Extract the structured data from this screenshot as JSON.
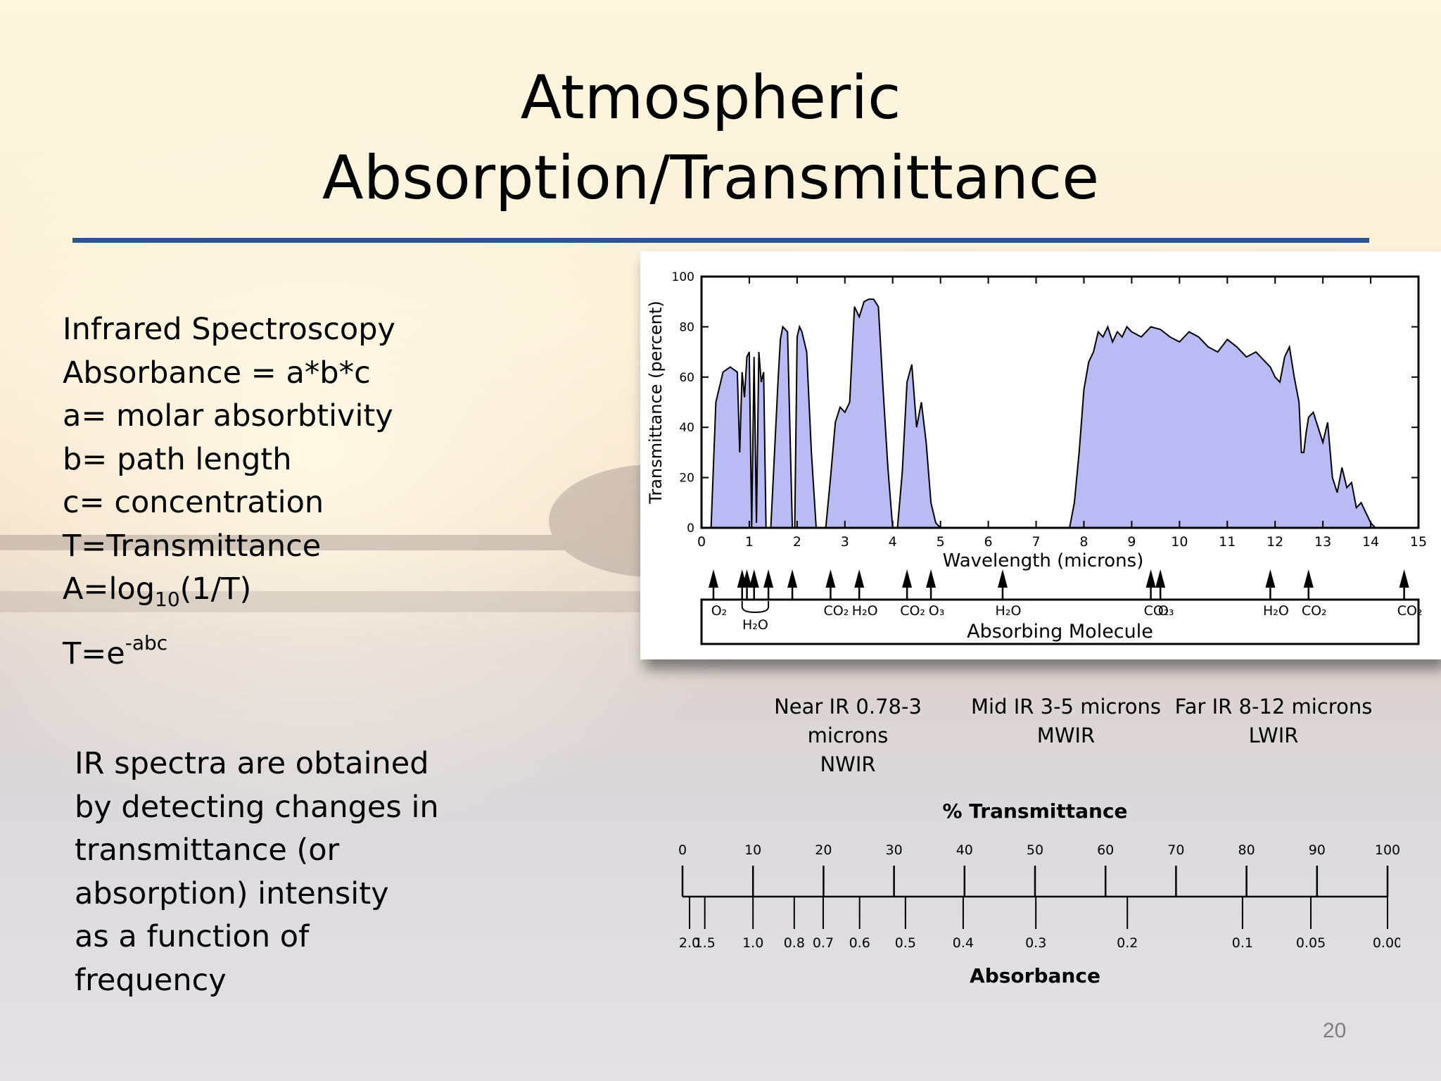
{
  "slide": {
    "title_line1": "Atmospheric",
    "title_line2": "Absorption/Transmittance",
    "page_number": "20",
    "accent_rule_color": "#2a5592"
  },
  "formulas": {
    "line1": "Infrared Spectroscopy",
    "line2": "Absorbance = a*b*c",
    "line3": "a= molar absorbtivity",
    "line4": "b= path length",
    "line5": "c= concentration",
    "line6": "T=Transmittance",
    "a_eq_prefix": "A=log",
    "a_eq_sub": "10",
    "a_eq_suffix": "(1/T)",
    "t_eq_prefix": "T=e",
    "t_eq_sup": "-abc"
  },
  "paragraph": {
    "lines": [
      "IR spectra are obtained",
      "by detecting changes in",
      "transmittance (or",
      "absorption) intensity",
      "as a function of",
      "frequency"
    ]
  },
  "ir_bands": [
    {
      "name": "Near IR 0.78-3 microns",
      "abbr": "NWIR"
    },
    {
      "name": "Mid IR 3-5 microns",
      "abbr": "MWIR"
    },
    {
      "name": "Far IR 8-12 microns",
      "abbr": "LWIR"
    }
  ],
  "chart_data": [
    {
      "type": "area",
      "title": "",
      "xlabel": "Wavelength (microns)",
      "ylabel": "Transmittance (percent)",
      "xlim": [
        0,
        15
      ],
      "ylim": [
        0,
        100
      ],
      "x_ticks": [
        "0",
        "1",
        "2",
        "3",
        "4",
        "5",
        "6",
        "7",
        "8",
        "9",
        "10",
        "11",
        "12",
        "13",
        "14",
        "15"
      ],
      "y_ticks": [
        "0",
        "20",
        "40",
        "60",
        "80",
        "100"
      ],
      "fill_color": "#b9bcf4",
      "series": [
        {
          "name": "Transmittance",
          "x": [
            0.2,
            0.3,
            0.45,
            0.6,
            0.75,
            0.8,
            0.85,
            0.9,
            0.95,
            1.0,
            1.05,
            1.1,
            1.15,
            1.2,
            1.25,
            1.3,
            1.35,
            1.4,
            1.45,
            1.6,
            1.65,
            1.7,
            1.8,
            1.9,
            1.95,
            2.0,
            2.05,
            2.1,
            2.2,
            2.3,
            2.4,
            2.5,
            2.6,
            2.7,
            2.8,
            2.9,
            3.0,
            3.1,
            3.2,
            3.3,
            3.4,
            3.5,
            3.6,
            3.7,
            3.8,
            3.9,
            4.0,
            4.1,
            4.2,
            4.3,
            4.4,
            4.5,
            4.6,
            4.7,
            4.8,
            4.9,
            5.0,
            5.1,
            5.2,
            5.3,
            5.4,
            5.5,
            5.6,
            5.7,
            5.8,
            6.0,
            7.0,
            7.7,
            7.8,
            7.9,
            8.0,
            8.1,
            8.2,
            8.3,
            8.4,
            8.5,
            8.6,
            8.7,
            8.8,
            8.9,
            9.0,
            9.2,
            9.4,
            9.6,
            9.8,
            10.0,
            10.2,
            10.4,
            10.6,
            10.8,
            11.0,
            11.2,
            11.4,
            11.6,
            11.8,
            11.9,
            12.0,
            12.1,
            12.2,
            12.3,
            12.4,
            12.5,
            12.55,
            12.6,
            12.65,
            12.7,
            12.8,
            12.9,
            13.0,
            13.1,
            13.2,
            13.3,
            13.4,
            13.5,
            13.6,
            13.7,
            13.8,
            13.9,
            14.0,
            14.1
          ],
          "values": [
            0,
            50,
            62,
            64,
            62,
            30,
            62,
            52,
            68,
            70,
            0,
            68,
            2,
            70,
            58,
            62,
            0,
            0,
            0,
            58,
            75,
            80,
            78,
            0,
            0,
            76,
            80,
            78,
            70,
            30,
            0,
            0,
            0,
            20,
            42,
            48,
            46,
            50,
            88,
            84,
            90,
            91,
            91,
            88,
            55,
            24,
            0,
            0,
            22,
            58,
            65,
            40,
            50,
            34,
            10,
            2,
            0,
            0,
            0,
            0,
            0,
            0,
            0,
            0,
            0,
            0,
            0,
            0,
            10,
            30,
            55,
            66,
            70,
            78,
            76,
            80,
            74,
            78,
            76,
            80,
            78,
            76,
            80,
            79,
            76,
            74,
            78,
            76,
            72,
            70,
            75,
            72,
            68,
            70,
            66,
            64,
            60,
            58,
            68,
            72,
            60,
            50,
            30,
            30,
            38,
            44,
            46,
            40,
            34,
            42,
            20,
            14,
            24,
            16,
            18,
            8,
            10,
            6,
            2,
            0
          ]
        }
      ],
      "absorbing_molecule_label": "Absorbing Molecule",
      "absorption_markers": [
        {
          "x": 0.25,
          "label": "O₂"
        },
        {
          "x": 0.85,
          "label": ""
        },
        {
          "x": 0.95,
          "label": ""
        },
        {
          "x": 1.1,
          "label": ""
        },
        {
          "x": 1.4,
          "label": ""
        },
        {
          "x": 1.9,
          "label": ""
        },
        {
          "x": 2.7,
          "label": "CO₂"
        },
        {
          "x": 3.3,
          "label": "H₂O"
        },
        {
          "x": 4.3,
          "label": "CO₂"
        },
        {
          "x": 4.8,
          "label": "O₃"
        },
        {
          "x": 6.3,
          "label": "H₂O"
        },
        {
          "x": 9.4,
          "label": "CO₂"
        },
        {
          "x": 9.6,
          "label": "O₃"
        },
        {
          "x": 11.9,
          "label": "H₂O"
        },
        {
          "x": 12.7,
          "label": "CO₂"
        },
        {
          "x": 14.7,
          "label": "CO₂"
        }
      ],
      "bracket_label": "H₂O"
    },
    {
      "type": "table",
      "title": "% Transmittance",
      "xlabel": "Absorbance",
      "transmittance_ticks": [
        0,
        10,
        20,
        30,
        40,
        50,
        60,
        70,
        80,
        90,
        100
      ],
      "absorbance_ticks": [
        {
          "label": "2.0",
          "value": 2.0
        },
        {
          "label": "1.5",
          "value": 1.5
        },
        {
          "label": "1.0",
          "value": 1.0
        },
        {
          "label": "0.8",
          "value": 0.8
        },
        {
          "label": "0.7",
          "value": 0.7
        },
        {
          "label": "0.6",
          "value": 0.6
        },
        {
          "label": "0.5",
          "value": 0.5
        },
        {
          "label": "0.4",
          "value": 0.4
        },
        {
          "label": "0.3",
          "value": 0.3
        },
        {
          "label": "0.2",
          "value": 0.2
        },
        {
          "label": "0.1",
          "value": 0.1
        },
        {
          "label": "0.05",
          "value": 0.05
        },
        {
          "label": "0.00",
          "value": 0.0
        }
      ]
    }
  ]
}
